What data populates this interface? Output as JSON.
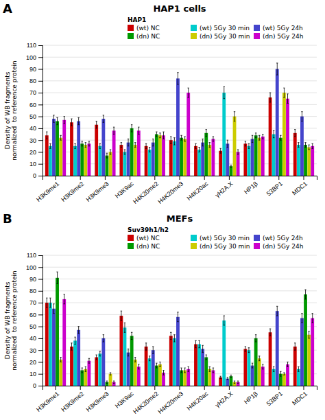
{
  "chart_data": [
    {
      "type": "bar",
      "title": "HAP1 cells",
      "annotations": [
        "A"
      ],
      "legend_title": "HAP1",
      "categories": [
        "H3K9me1",
        "H3K9me2",
        "H3K9me3",
        "H3K9ac",
        "H4K20me2",
        "H4K20me3",
        "H4K20ac",
        "γH2A.X",
        "HP1β",
        "53BP1",
        "MDC1"
      ],
      "series": [
        {
          "name": "(wt) NC",
          "color": "#cc0000",
          "values": [
            34,
            45,
            43,
            26,
            25,
            30,
            25,
            21,
            27,
            66,
            36
          ],
          "errors": [
            3,
            3,
            3,
            2,
            2,
            3,
            2,
            2,
            2,
            4,
            3
          ]
        },
        {
          "name": "(wt) 5Gy 30 min",
          "color": "#00cccc",
          "values": [
            25,
            25,
            25,
            20,
            22,
            29,
            22,
            70,
            25,
            35,
            26
          ],
          "errors": [
            2,
            2,
            2,
            2,
            2,
            3,
            2,
            5,
            2,
            3,
            2
          ]
        },
        {
          "name": "(wt) 5Gy 24h",
          "color": "#4444cc",
          "values": [
            48,
            46,
            48,
            28,
            28,
            82,
            28,
            27,
            31,
            90,
            50
          ],
          "errors": [
            3,
            3,
            3,
            3,
            3,
            5,
            3,
            3,
            3,
            5,
            4
          ]
        },
        {
          "name": "(dn) NC",
          "color": "#009900",
          "values": [
            46,
            27,
            17,
            40,
            35,
            32,
            36,
            8,
            34,
            32,
            26
          ],
          "errors": [
            3,
            2,
            2,
            3,
            2,
            2,
            3,
            1,
            2,
            2,
            2
          ]
        },
        {
          "name": "(dn) 5Gy 30 min",
          "color": "#cccc00",
          "values": [
            32,
            26,
            20,
            26,
            34,
            31,
            26,
            50,
            32,
            70,
            24
          ],
          "errors": [
            2,
            2,
            2,
            2,
            2,
            2,
            2,
            4,
            2,
            4,
            2
          ]
        },
        {
          "name": "(dn) 5Gy 24h",
          "color": "#cc00cc",
          "values": [
            47,
            27,
            38,
            38,
            34,
            70,
            31,
            20,
            33,
            65,
            25
          ],
          "errors": [
            3,
            2,
            3,
            3,
            3,
            4,
            2,
            2,
            2,
            4,
            2
          ]
        }
      ],
      "ylabel": "Density of WB fragments\nnormalized  to reference protein",
      "ylim": [
        0,
        110
      ],
      "yticks": [
        0,
        10,
        20,
        30,
        40,
        50,
        60,
        70,
        80,
        90,
        100,
        110
      ],
      "grid": true,
      "legend": "upper right"
    },
    {
      "type": "bar",
      "title": "MEFs",
      "annotations": [
        "B"
      ],
      "legend_title": "Suv39h1/h2",
      "categories": [
        "H3K9me1",
        "H3K9me2",
        "H3K9me3",
        "H3K9ac",
        "H4K20me2",
        "H4K20me3",
        "H4K20ac",
        "γH2A.X",
        "HP1β",
        "53BP1",
        "MDC1"
      ],
      "series": [
        {
          "name": "(wt) NC",
          "color": "#cc0000",
          "values": [
            70,
            33,
            24,
            59,
            33,
            42,
            35,
            7,
            31,
            45,
            33
          ],
          "errors": [
            4,
            3,
            2,
            4,
            3,
            3,
            3,
            1,
            2,
            3,
            3
          ]
        },
        {
          "name": "(wt) 5Gy 30 min",
          "color": "#00cccc",
          "values": [
            70,
            38,
            27,
            49,
            23,
            40,
            35,
            55,
            30,
            14,
            14
          ],
          "errors": [
            4,
            3,
            2,
            4,
            2,
            3,
            3,
            4,
            2,
            2,
            2
          ]
        },
        {
          "name": "(wt) 5Gy 24h",
          "color": "#4444cc",
          "values": [
            65,
            47,
            40,
            28,
            30,
            58,
            31,
            6,
            17,
            63,
            57
          ],
          "errors": [
            4,
            3,
            3,
            3,
            3,
            4,
            3,
            1,
            2,
            4,
            4
          ]
        },
        {
          "name": "(dn) NC",
          "color": "#009900",
          "values": [
            91,
            13,
            3,
            42,
            17,
            13,
            24,
            8,
            40,
            10,
            77
          ],
          "errors": [
            5,
            2,
            1,
            3,
            2,
            2,
            2,
            1,
            3,
            2,
            4
          ]
        },
        {
          "name": "(dn) 5Gy 30 min",
          "color": "#cccc00",
          "values": [
            22,
            14,
            10,
            22,
            18,
            13,
            14,
            3,
            23,
            10,
            43
          ],
          "errors": [
            2,
            2,
            1,
            2,
            2,
            2,
            2,
            1,
            2,
            1,
            3
          ]
        },
        {
          "name": "(dn) 5Gy 24h",
          "color": "#cc00cc",
          "values": [
            73,
            21,
            3,
            16,
            11,
            14,
            13,
            3,
            16,
            18,
            57
          ],
          "errors": [
            4,
            2,
            1,
            2,
            2,
            2,
            2,
            1,
            2,
            2,
            4
          ]
        }
      ],
      "ylabel": "Density of WB fragments\nnormalized  to reference protein",
      "ylim": [
        0,
        110
      ],
      "yticks": [
        0,
        10,
        20,
        30,
        40,
        50,
        60,
        70,
        80,
        90,
        100,
        110
      ],
      "grid": true,
      "legend": "upper right"
    }
  ]
}
